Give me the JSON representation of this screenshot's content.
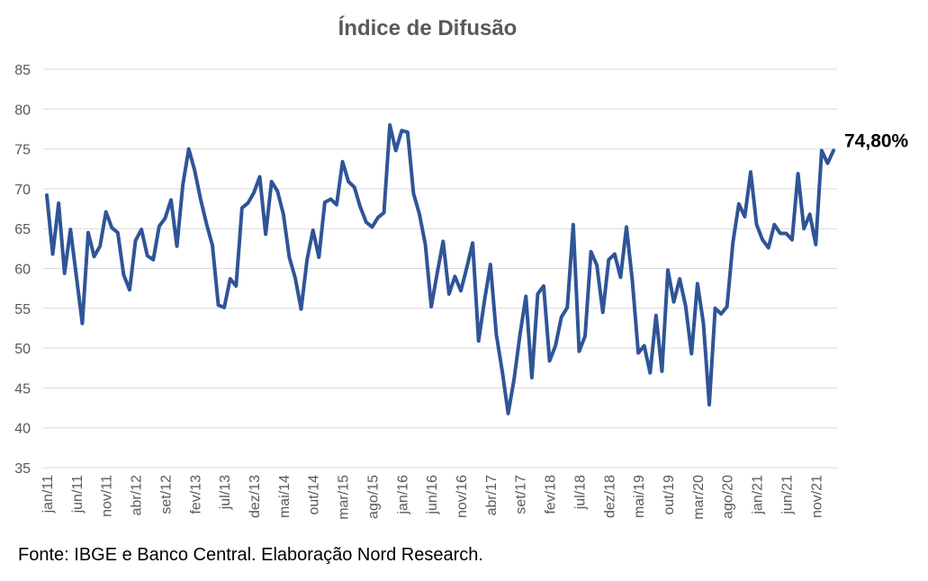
{
  "chart_data": {
    "type": "line",
    "title": "Índice de Difusão",
    "source": "Fonte: IBGE e Banco Central. Elaboração Nord Research.",
    "ylim": [
      35,
      85
    ],
    "yticks": [
      "35",
      "40",
      "45",
      "50",
      "55",
      "60",
      "65",
      "70",
      "75",
      "80",
      "85"
    ],
    "grid": true,
    "line_color": "#2F5597",
    "last_value_label": "74,80%",
    "x_tick_labels": [
      {
        "index": 0,
        "label": "jan/11"
      },
      {
        "index": 5,
        "label": "jun/11"
      },
      {
        "index": 10,
        "label": "nov/11"
      },
      {
        "index": 15,
        "label": "abr/12"
      },
      {
        "index": 20,
        "label": "set/12"
      },
      {
        "index": 25,
        "label": "fev/13"
      },
      {
        "index": 30,
        "label": "jul/13"
      },
      {
        "index": 35,
        "label": "dez/13"
      },
      {
        "index": 40,
        "label": "mai/14"
      },
      {
        "index": 45,
        "label": "out/14"
      },
      {
        "index": 50,
        "label": "mar/15"
      },
      {
        "index": 55,
        "label": "ago/15"
      },
      {
        "index": 60,
        "label": "jan/16"
      },
      {
        "index": 65,
        "label": "jun/16"
      },
      {
        "index": 70,
        "label": "nov/16"
      },
      {
        "index": 75,
        "label": "abr/17"
      },
      {
        "index": 80,
        "label": "set/17"
      },
      {
        "index": 85,
        "label": "fev/18"
      },
      {
        "index": 90,
        "label": "jul/18"
      },
      {
        "index": 95,
        "label": "dez/18"
      },
      {
        "index": 100,
        "label": "mai/19"
      },
      {
        "index": 105,
        "label": "out/19"
      },
      {
        "index": 110,
        "label": "mar/20"
      },
      {
        "index": 115,
        "label": "ago/20"
      },
      {
        "index": 120,
        "label": "jan/21"
      },
      {
        "index": 125,
        "label": "jun/21"
      },
      {
        "index": 130,
        "label": "nov/21"
      }
    ],
    "series": [
      {
        "values": [
          69.2,
          61.8,
          68.2,
          59.4,
          64.9,
          59.0,
          53.1,
          64.5,
          61.5,
          62.8,
          67.1,
          65.1,
          64.5,
          59.2,
          57.3,
          63.5,
          64.9,
          61.6,
          61.1,
          65.3,
          66.3,
          68.6,
          62.8,
          70.5,
          75.0,
          72.3,
          68.7,
          65.6,
          62.9,
          55.4,
          55.1,
          58.7,
          57.8,
          67.6,
          68.2,
          69.5,
          71.5,
          64.3,
          70.9,
          69.7,
          66.8,
          61.4,
          58.8,
          54.9,
          61.1,
          64.8,
          61.4,
          68.3,
          68.7,
          68.0,
          73.4,
          70.9,
          70.2,
          67.7,
          65.8,
          65.2,
          66.4,
          67.0,
          78.0,
          74.8,
          77.3,
          77.1,
          69.4,
          66.8,
          63.0,
          55.2,
          59.4,
          63.4,
          56.8,
          59.0,
          57.2,
          60.1,
          63.2,
          50.9,
          56.0,
          60.5,
          51.7,
          47.1,
          41.8,
          46.1,
          51.7,
          56.5,
          46.3,
          56.8,
          57.8,
          48.4,
          50.3,
          53.9,
          55.1,
          65.5,
          49.6,
          51.5,
          62.1,
          60.4,
          54.5,
          61.1,
          61.8,
          58.9,
          65.2,
          58.4,
          49.4,
          50.3,
          46.9,
          54.1,
          47.1,
          59.8,
          55.8,
          58.7,
          55.3,
          49.3,
          58.1,
          53.2,
          42.9,
          55.0,
          54.3,
          55.2,
          63.3,
          68.1,
          66.5,
          72.1,
          65.5,
          63.6,
          62.6,
          65.5,
          64.4,
          64.4,
          63.6,
          71.9,
          65.0,
          66.8,
          63.0,
          74.8,
          73.2,
          74.8
        ]
      }
    ]
  }
}
